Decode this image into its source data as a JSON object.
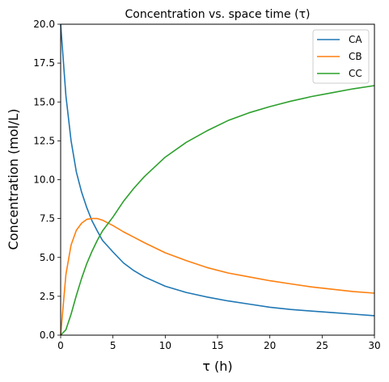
{
  "chart_data": {
    "type": "line",
    "title": "Concentration vs. space time (τ)",
    "xlabel": "τ (h)",
    "ylabel": "Concentration (mol/L)",
    "xlim": [
      0,
      30
    ],
    "ylim": [
      0,
      20
    ],
    "x_ticks": [
      "0",
      "5",
      "10",
      "15",
      "20",
      "25",
      "30"
    ],
    "y_ticks": [
      "0.0",
      "2.5",
      "5.0",
      "7.5",
      "10.0",
      "12.5",
      "15.0",
      "17.5",
      "20.0"
    ],
    "grid": false,
    "legend_position": "top-right",
    "x": [
      0,
      0.5,
      1,
      1.5,
      2,
      2.5,
      3,
      3.5,
      4,
      5,
      6,
      7,
      8,
      10,
      12,
      14,
      16,
      18,
      20,
      22,
      24,
      26,
      28,
      30
    ],
    "series": [
      {
        "name": "CA",
        "color": "#1f77b4",
        "values": [
          20.0,
          15.4,
          12.5,
          10.5,
          9.2,
          8.2,
          7.35,
          6.7,
          6.1,
          5.35,
          4.65,
          4.15,
          3.75,
          3.15,
          2.75,
          2.45,
          2.2,
          2.0,
          1.8,
          1.65,
          1.55,
          1.45,
          1.35,
          1.25
        ]
      },
      {
        "name": "CB",
        "color": "#ff7f0e",
        "values": [
          0.0,
          3.9,
          5.8,
          6.75,
          7.2,
          7.45,
          7.5,
          7.5,
          7.4,
          7.05,
          6.65,
          6.3,
          5.95,
          5.3,
          4.8,
          4.35,
          4.0,
          3.75,
          3.5,
          3.3,
          3.1,
          2.95,
          2.8,
          2.7
        ]
      },
      {
        "name": "CC",
        "color": "#2ca02c",
        "values": [
          0.0,
          0.35,
          1.35,
          2.55,
          3.65,
          4.6,
          5.4,
          6.1,
          6.7,
          7.6,
          8.6,
          9.45,
          10.2,
          11.45,
          12.4,
          13.15,
          13.8,
          14.3,
          14.7,
          15.05,
          15.35,
          15.6,
          15.85,
          16.05
        ]
      }
    ]
  }
}
